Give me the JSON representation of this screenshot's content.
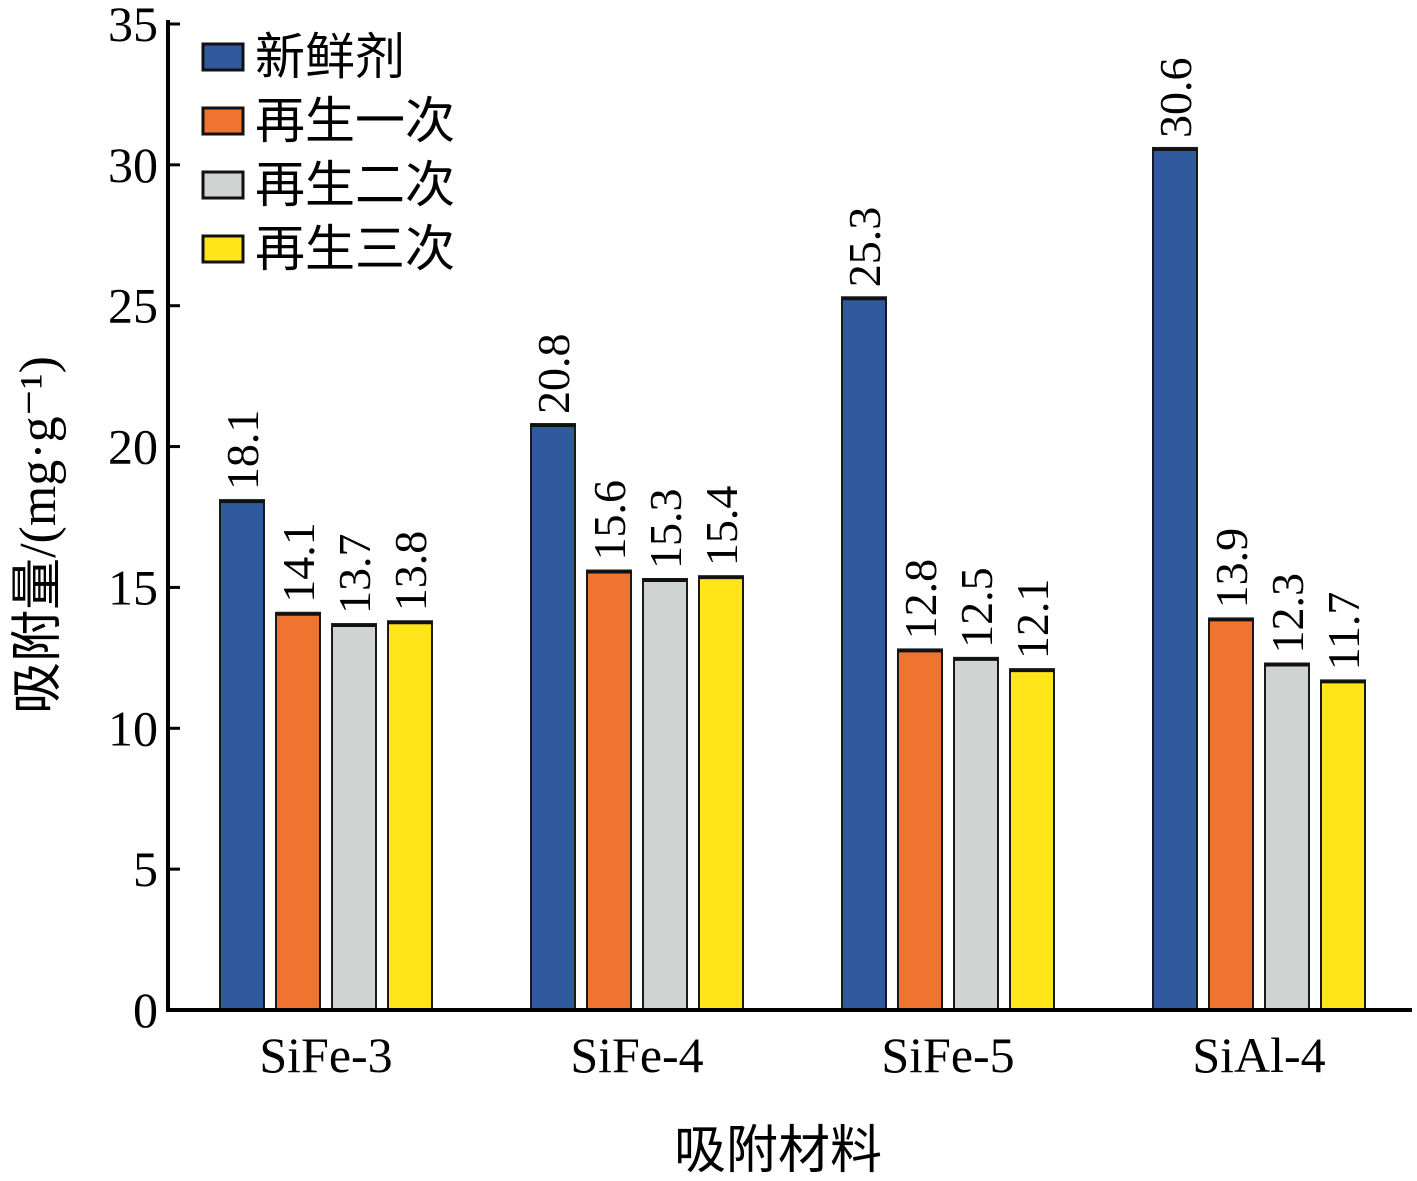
{
  "chart_data": {
    "type": "bar",
    "categories": [
      "SiFe-3",
      "SiFe-4",
      "SiFe-5",
      "SiAl-4"
    ],
    "series": [
      {
        "name": "新鲜剂",
        "color": "#2f5b9e",
        "values": [
          18.1,
          20.8,
          25.3,
          30.6
        ]
      },
      {
        "name": "再生一次",
        "color": "#ee7430",
        "values": [
          14.1,
          15.6,
          12.8,
          13.9
        ]
      },
      {
        "name": "再生二次",
        "color": "#cfd4d3",
        "values": [
          13.7,
          15.3,
          12.5,
          12.3
        ]
      },
      {
        "name": "再生三次",
        "color": "#ffe51a",
        "values": [
          13.8,
          15.4,
          12.1,
          11.7
        ]
      }
    ],
    "xlabel": "吸附材料",
    "ylabel": "吸附量/(mg·g⁻¹)",
    "ylim": [
      0,
      35
    ],
    "yticks": [
      0,
      5,
      10,
      15,
      20,
      25,
      30,
      35
    ],
    "grid": false,
    "legend_position": "top-left"
  }
}
